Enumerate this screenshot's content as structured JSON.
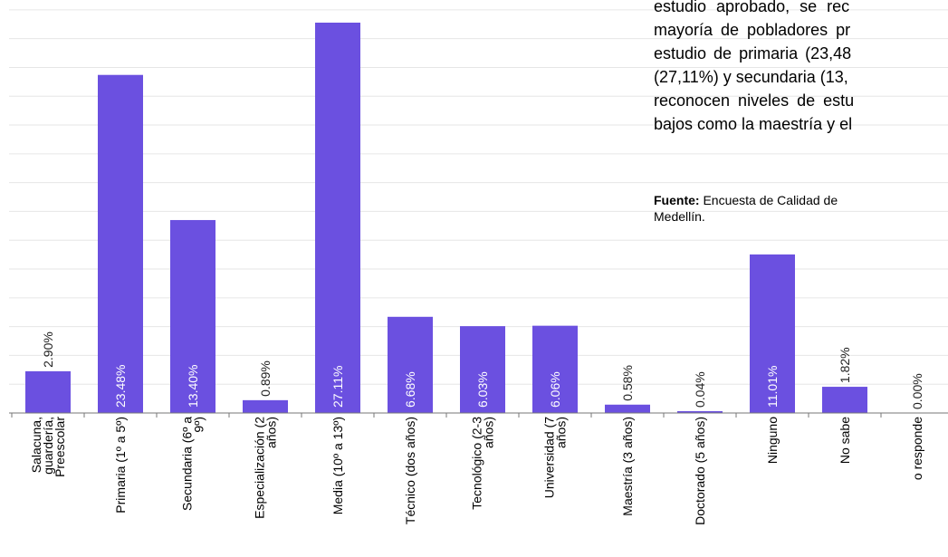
{
  "chart_data": {
    "type": "bar",
    "categories": [
      [
        "Salacuna,",
        "guardería,",
        "Preescolar"
      ],
      [
        "Primaria (1º a 5º)"
      ],
      [
        "Secundaria (6º a",
        "9º)"
      ],
      [
        "Especialización (2",
        "años)"
      ],
      [
        "Media (10º a 13º)"
      ],
      [
        "Técnico (dos años)"
      ],
      [
        "Tecnológico (2-3",
        "años)"
      ],
      [
        "Universidad (7",
        "años)"
      ],
      [
        "Maestría (3 años)"
      ],
      [
        "Doctorado (5 años)"
      ],
      [
        "Ninguno"
      ],
      [
        "No sabe"
      ],
      [
        "o responde"
      ]
    ],
    "values": [
      2.9,
      23.48,
      13.4,
      0.89,
      27.11,
      6.68,
      6.03,
      6.06,
      0.58,
      0.04,
      11.01,
      1.82,
      0.0
    ],
    "value_labels": [
      "2.90%",
      "23.48%",
      "13.40%",
      "0.89%",
      "27.11%",
      "6.68%",
      "6.03%",
      "6.06%",
      "0.58%",
      "0.04%",
      "11.01%",
      "1.82%",
      "0.00%"
    ],
    "label_inside": [
      false,
      true,
      true,
      false,
      true,
      true,
      true,
      true,
      false,
      false,
      true,
      false,
      false
    ],
    "ylim": [
      0,
      29
    ],
    "grid": true,
    "bar_color": "#6b50e0",
    "grid_color": "#e6e6e6"
  },
  "text": {
    "paragraph_lines": [
      "estudio aprobado, se rec",
      "mayoría de pobladores pr",
      "estudio de primaria (23,48",
      "(27,11%) y secundaria (13,",
      "reconocen niveles de estu",
      "bajos como la maestría y el"
    ],
    "source_label": "Fuente:",
    "source_text": " Encuesta de Calidad de",
    "source_text_2": "Medellín."
  }
}
